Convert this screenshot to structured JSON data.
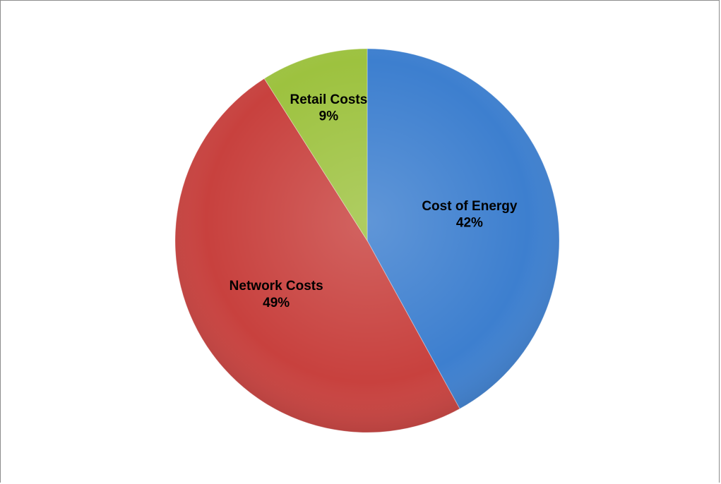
{
  "chart_data": {
    "type": "pie",
    "slices": [
      {
        "label": "Cost of Energy",
        "value": 42,
        "display": "42%",
        "color": "#3d7fcf"
      },
      {
        "label": "Network Costs",
        "value": 49,
        "display": "49%",
        "color": "#c8413e"
      },
      {
        "label": "Retail Costs",
        "value": 9,
        "display": "9%",
        "color": "#9dc23f"
      }
    ],
    "start": "12 o'clock",
    "direction": "clockwise",
    "legend": "none",
    "data_labels": "category name and percentage on slice"
  }
}
